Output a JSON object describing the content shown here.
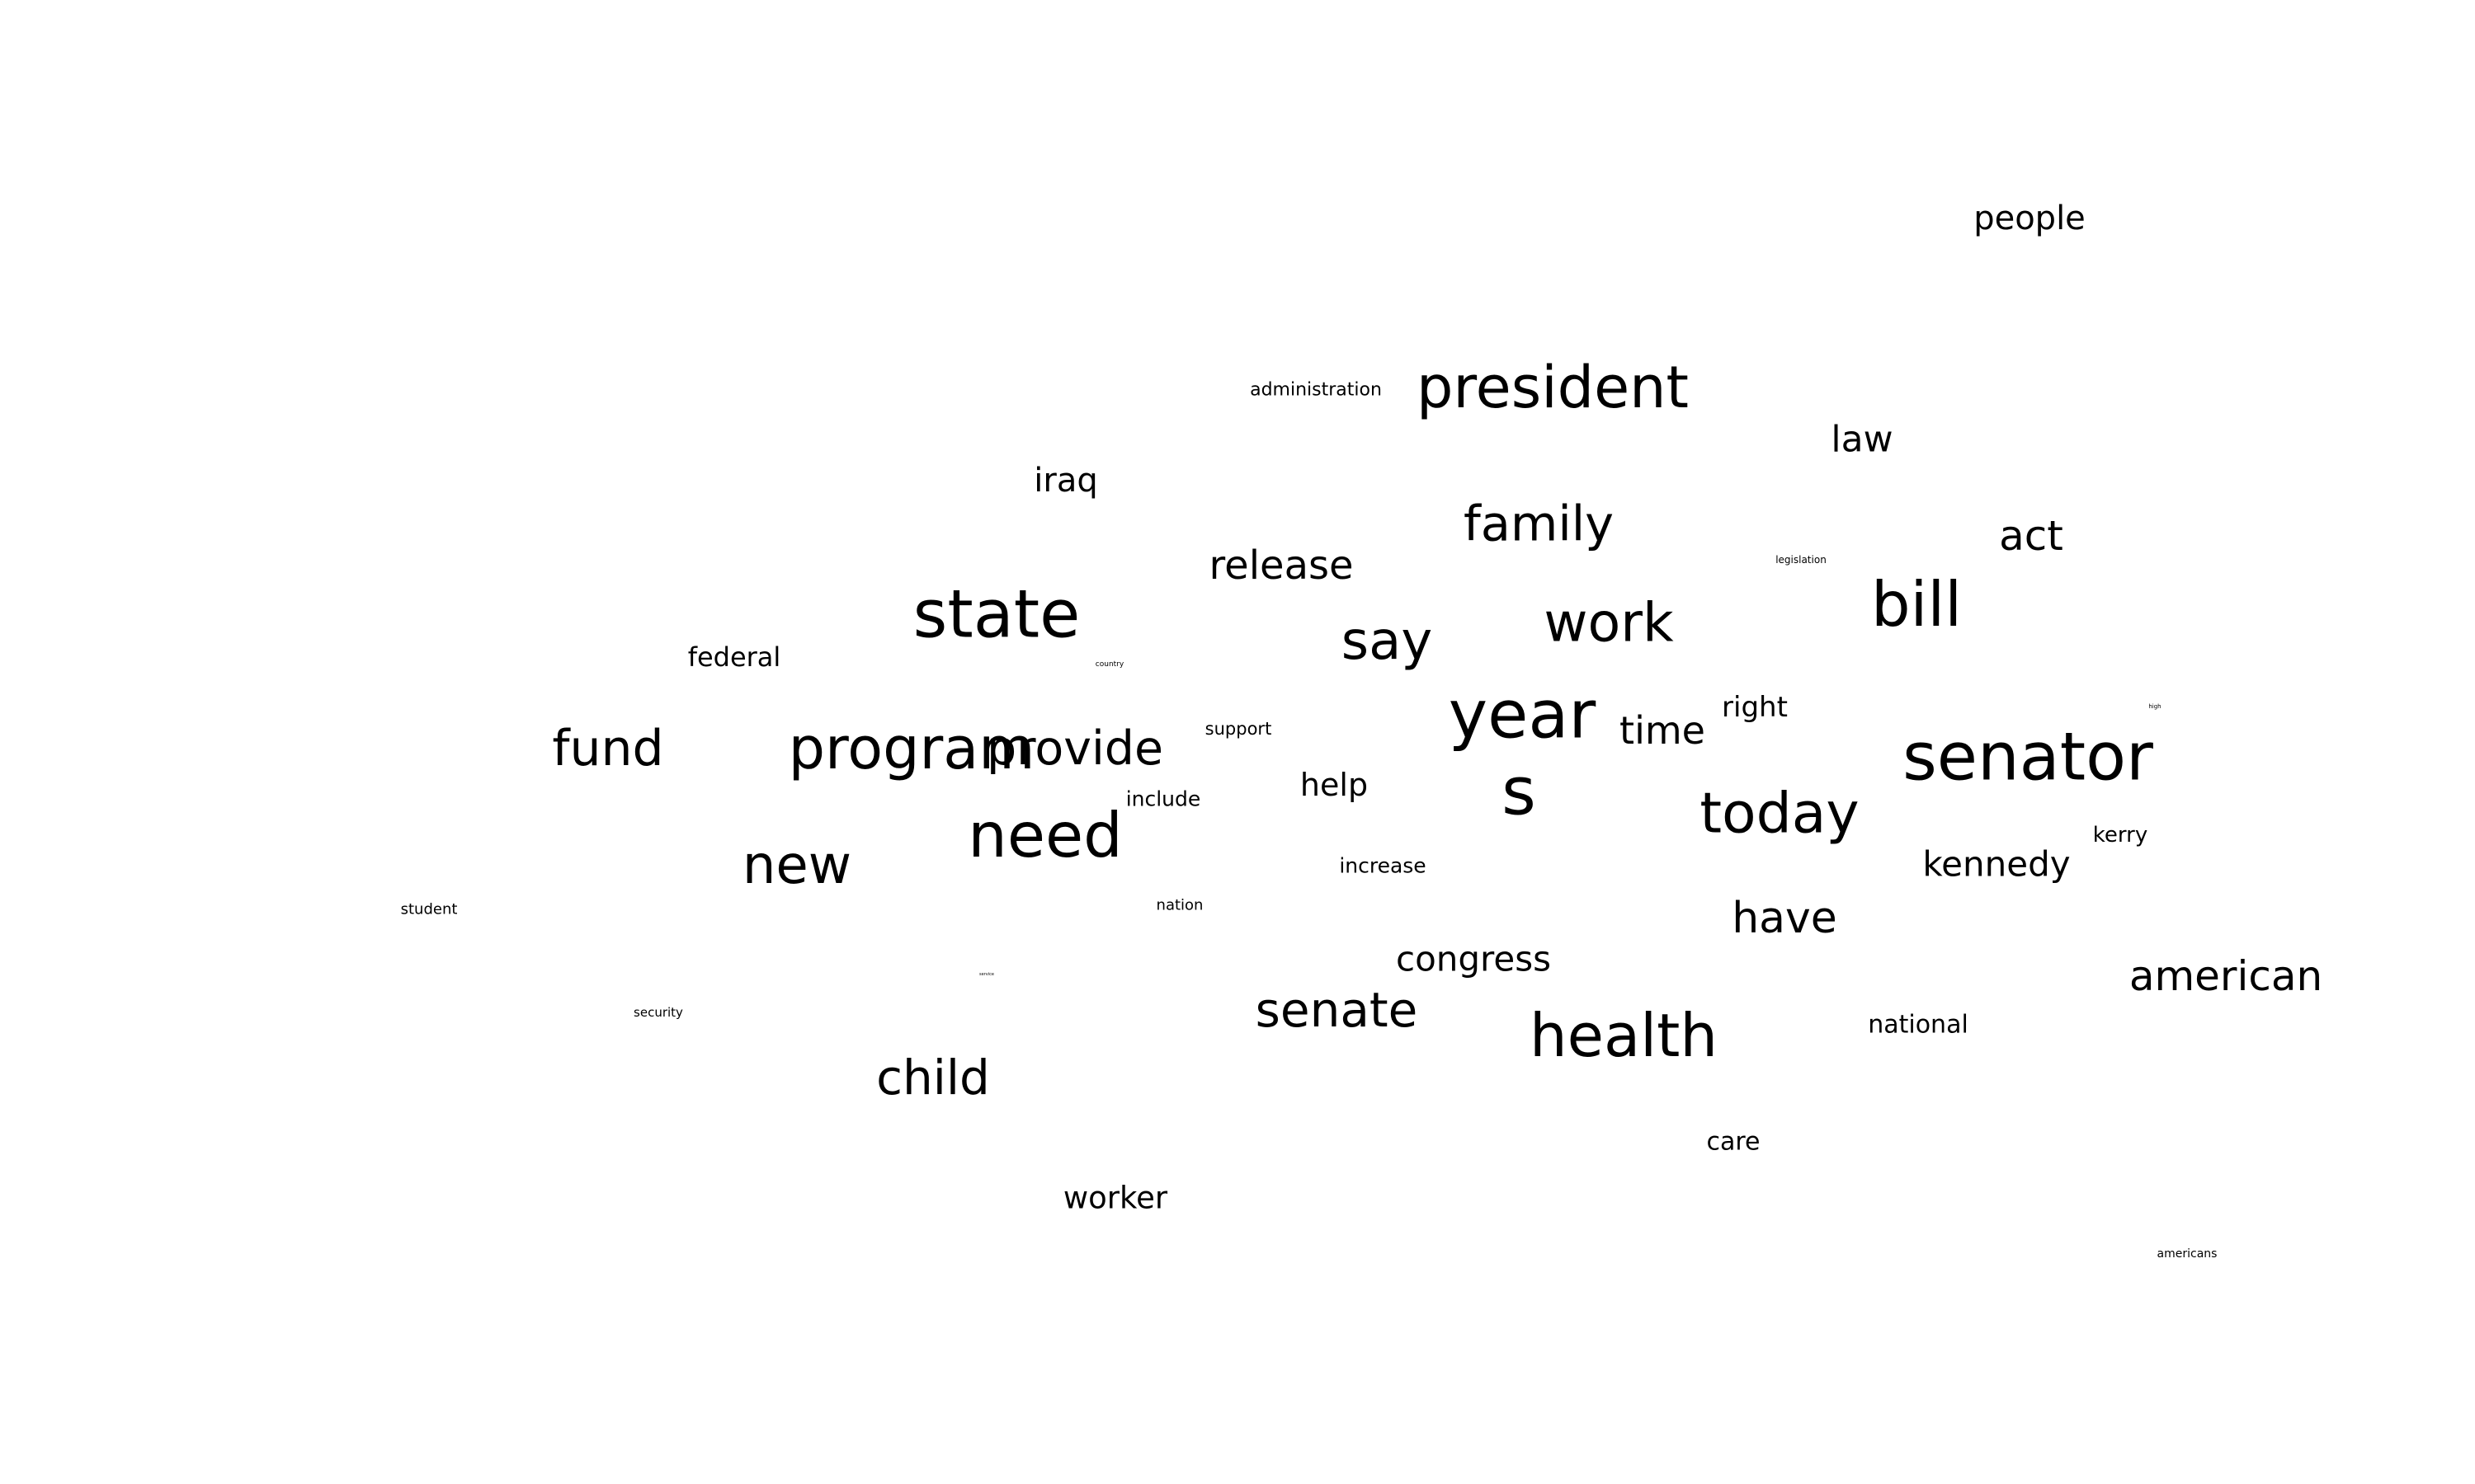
{
  "words": [
    {
      "text": "people",
      "weight": 40
    },
    {
      "text": "administration",
      "weight": 22
    },
    {
      "text": "president",
      "weight": 70
    },
    {
      "text": "law",
      "weight": 44
    },
    {
      "text": "iraq",
      "weight": 40
    },
    {
      "text": "family",
      "weight": 59
    },
    {
      "text": "act",
      "weight": 50
    },
    {
      "text": "legislation",
      "weight": 12
    },
    {
      "text": "release",
      "weight": 48
    },
    {
      "text": "bill",
      "weight": 75
    },
    {
      "text": "state",
      "weight": 80
    },
    {
      "text": "work",
      "weight": 65
    },
    {
      "text": "say",
      "weight": 64
    },
    {
      "text": "federal",
      "weight": 32
    },
    {
      "text": "country",
      "weight": 9
    },
    {
      "text": "right",
      "weight": 34
    },
    {
      "text": "high",
      "weight": 7
    },
    {
      "text": "year",
      "weight": 80
    },
    {
      "text": "time",
      "weight": 46
    },
    {
      "text": "support",
      "weight": 21
    },
    {
      "text": "fund",
      "weight": 60
    },
    {
      "text": "program",
      "weight": 70
    },
    {
      "text": "provide",
      "weight": 57
    },
    {
      "text": "senator",
      "weight": 80
    },
    {
      "text": "help",
      "weight": 38
    },
    {
      "text": "s",
      "weight": 80
    },
    {
      "text": "include",
      "weight": 25
    },
    {
      "text": "today",
      "weight": 68
    },
    {
      "text": "need",
      "weight": 75
    },
    {
      "text": "kerry",
      "weight": 26
    },
    {
      "text": "kennedy",
      "weight": 42
    },
    {
      "text": "new",
      "weight": 64
    },
    {
      "text": "increase",
      "weight": 25
    },
    {
      "text": "nation",
      "weight": 18
    },
    {
      "text": "student",
      "weight": 18
    },
    {
      "text": "have",
      "weight": 52
    },
    {
      "text": "congress",
      "weight": 42
    },
    {
      "text": "american",
      "weight": 50
    },
    {
      "text": "senate",
      "weight": 58
    },
    {
      "text": "security",
      "weight": 15
    },
    {
      "text": "service",
      "weight": 5
    },
    {
      "text": "health",
      "weight": 72
    },
    {
      "text": "national",
      "weight": 30
    },
    {
      "text": "child",
      "weight": 58
    },
    {
      "text": "care",
      "weight": 30
    },
    {
      "text": "worker",
      "weight": 37
    },
    {
      "text": "americans",
      "weight": 14
    }
  ]
}
